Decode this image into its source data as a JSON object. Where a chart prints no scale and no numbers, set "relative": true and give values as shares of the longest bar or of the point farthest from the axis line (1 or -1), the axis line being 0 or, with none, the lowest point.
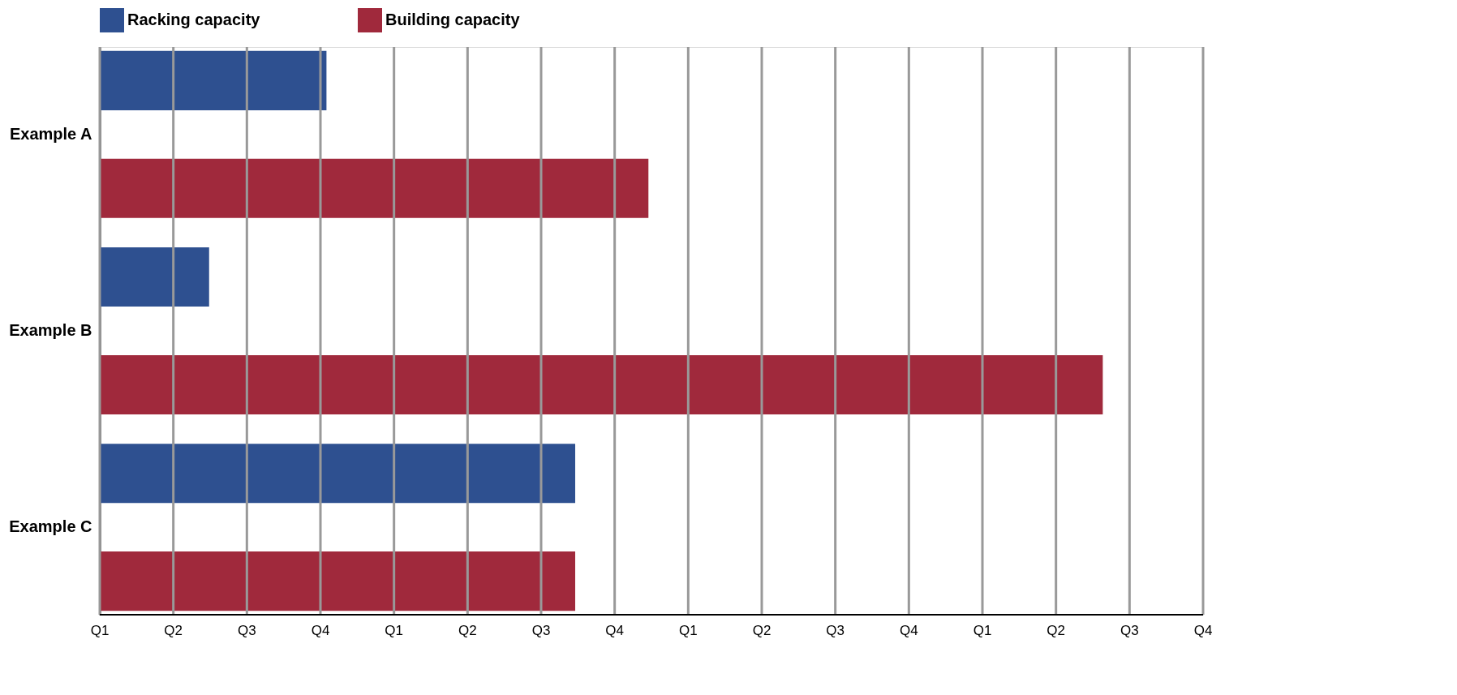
{
  "chart_data": {
    "type": "bar",
    "orientation": "horizontal",
    "relative": true,
    "categories": [
      "Example A",
      "Example B",
      "Example C"
    ],
    "series": [
      {
        "name": "Racking capacity",
        "color": "#2e5090",
        "values": [
          0.226,
          0.109,
          0.474
        ]
      },
      {
        "name": "Building capacity",
        "color": "#a0293c",
        "values": [
          0.547,
          1,
          0.474
        ]
      }
    ],
    "annotations": [
      "Q1",
      "Q2",
      "Q3",
      "Q4",
      "Q1",
      "Q2",
      "Q3",
      "Q4",
      "Q1",
      "Q2",
      "Q3",
      "Q4",
      "Q1",
      "Q2",
      "Q3",
      "Q4"
    ],
    "grid": "x",
    "legend": "top"
  }
}
